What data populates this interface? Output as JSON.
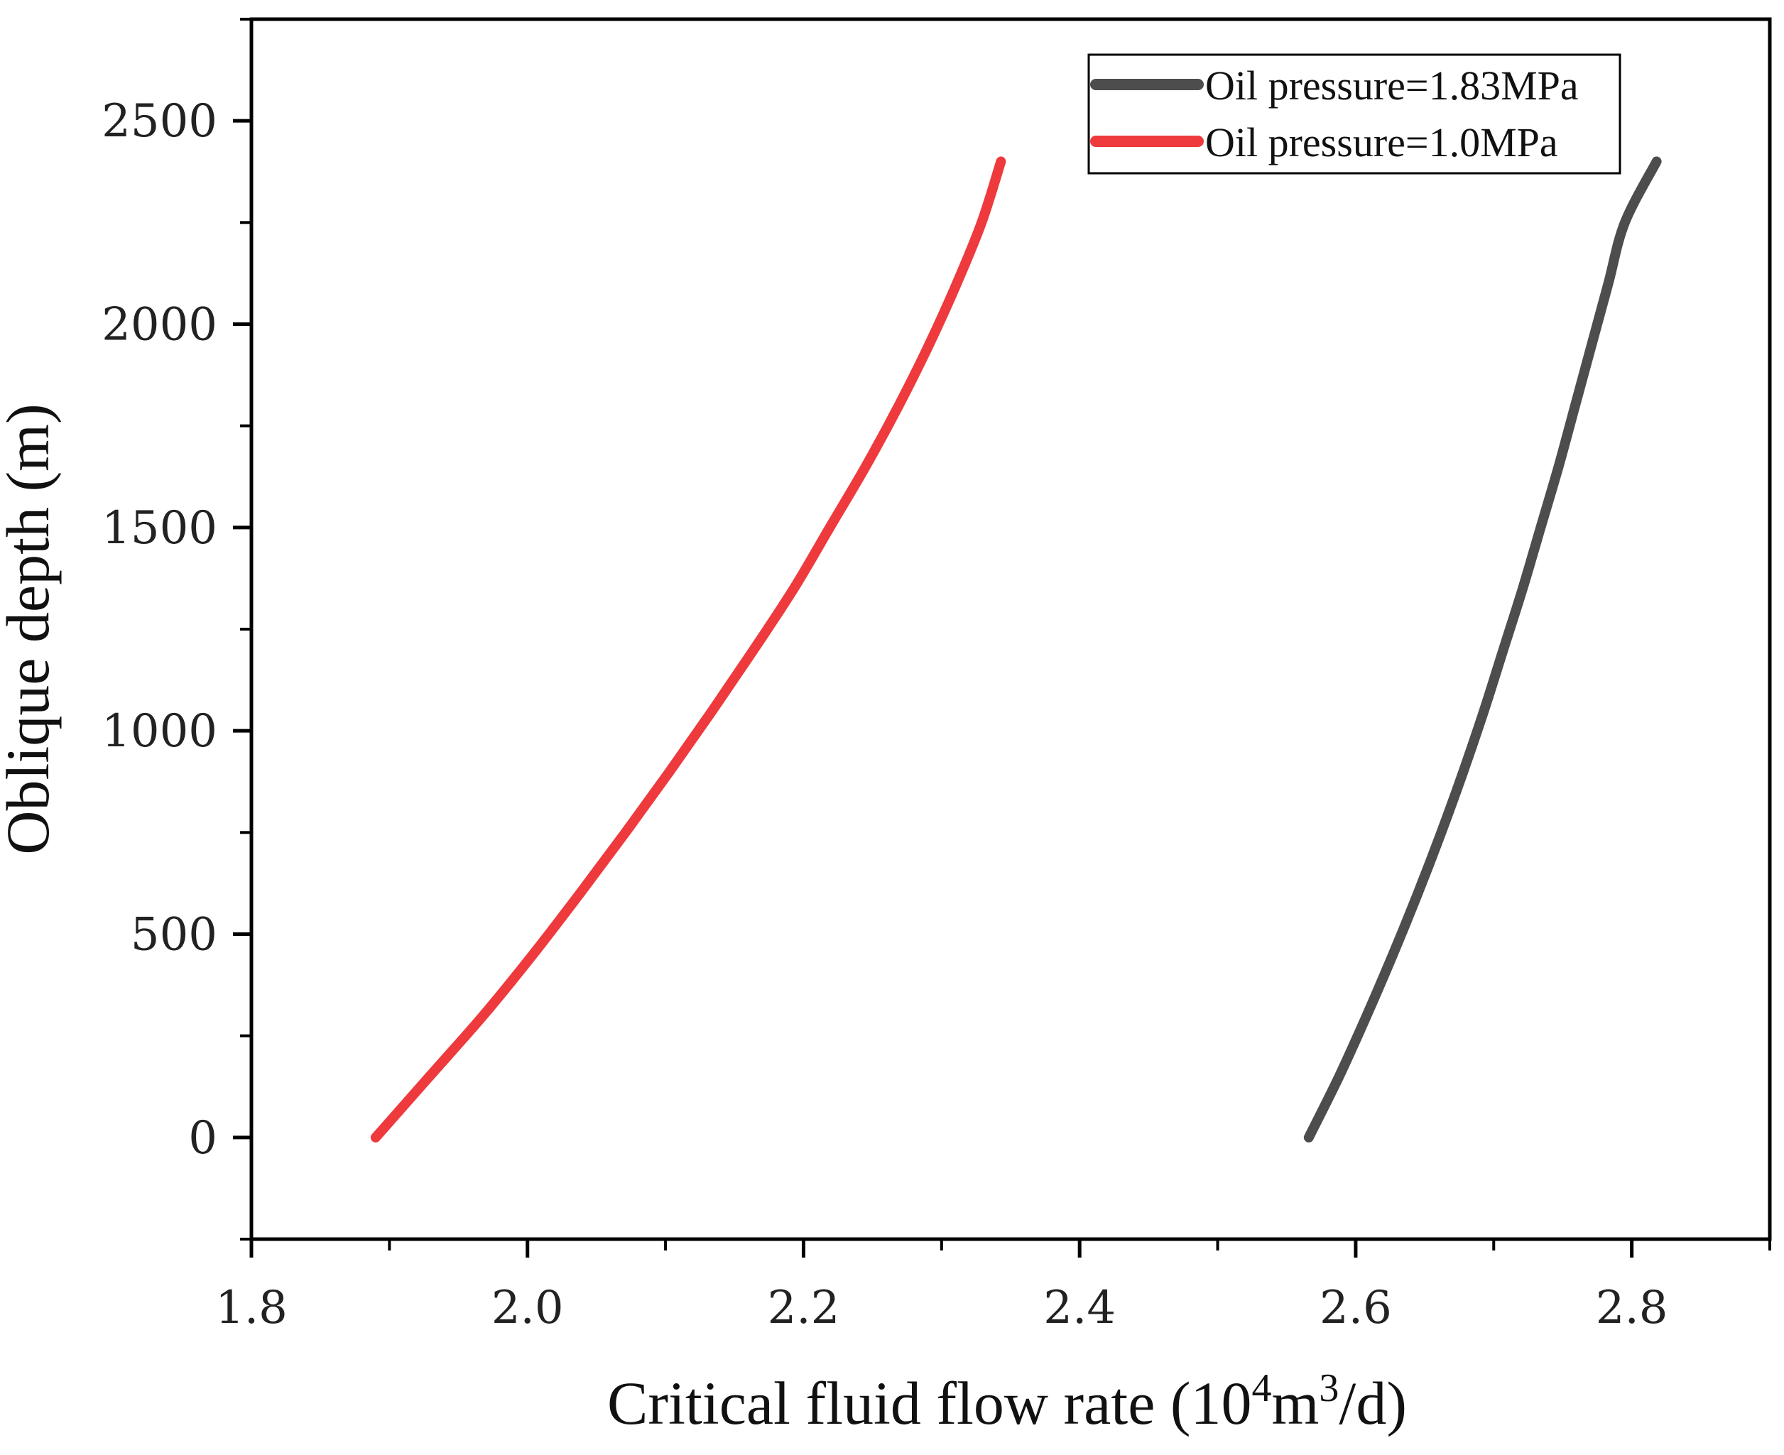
{
  "chart_data": {
    "type": "line",
    "title": "",
    "xlabel": {
      "main": "Critical fluid flow rate (10",
      "sup1": "4",
      "mid": "m",
      "sup2": "3",
      "end": "/d)"
    },
    "ylabel": "Oblique depth (m)",
    "xlim": [
      1.8,
      2.9
    ],
    "ylim": [
      -250,
      2750
    ],
    "x_ticks": [
      {
        "value": 1.8,
        "label": "1.8"
      },
      {
        "value": 2.0,
        "label": "2.0"
      },
      {
        "value": 2.2,
        "label": "2.2"
      },
      {
        "value": 2.4,
        "label": "2.4"
      },
      {
        "value": 2.6,
        "label": "2.6"
      },
      {
        "value": 2.8,
        "label": "2.8"
      }
    ],
    "x_minor_ticks": [
      1.9,
      2.1,
      2.3,
      2.5,
      2.7,
      2.9
    ],
    "y_ticks": [
      {
        "value": 0,
        "label": "0"
      },
      {
        "value": 500,
        "label": "500"
      },
      {
        "value": 1000,
        "label": "1000"
      },
      {
        "value": 1500,
        "label": "1500"
      },
      {
        "value": 2000,
        "label": "2000"
      },
      {
        "value": 2500,
        "label": "2500"
      }
    ],
    "y_minor_ticks": [
      -250,
      250,
      750,
      1250,
      1750,
      2250,
      2750
    ],
    "grid": false,
    "legend": "top-right",
    "series": [
      {
        "name": "Oil pressure=1.83MPa",
        "color": "#4d4d4d",
        "points": [
          [
            2.566,
            0
          ],
          [
            2.588,
            150
          ],
          [
            2.608,
            300
          ],
          [
            2.627,
            450
          ],
          [
            2.645,
            600
          ],
          [
            2.662,
            750
          ],
          [
            2.678,
            900
          ],
          [
            2.693,
            1050
          ],
          [
            2.707,
            1200
          ],
          [
            2.721,
            1350
          ],
          [
            2.734,
            1500
          ],
          [
            2.747,
            1650
          ],
          [
            2.759,
            1800
          ],
          [
            2.771,
            1950
          ],
          [
            2.783,
            2100
          ],
          [
            2.795,
            2250
          ],
          [
            2.818,
            2400
          ]
        ]
      },
      {
        "name": "Oil pressure=1.0MPa",
        "color": "#ee3a3d",
        "points": [
          [
            1.89,
            0
          ],
          [
            1.929,
            150
          ],
          [
            1.968,
            300
          ],
          [
            2.004,
            450
          ],
          [
            2.038,
            600
          ],
          [
            2.071,
            750
          ],
          [
            2.103,
            900
          ],
          [
            2.134,
            1050
          ],
          [
            2.164,
            1200
          ],
          [
            2.193,
            1350
          ],
          [
            2.219,
            1500
          ],
          [
            2.245,
            1650
          ],
          [
            2.269,
            1800
          ],
          [
            2.291,
            1950
          ],
          [
            2.311,
            2100
          ],
          [
            2.329,
            2250
          ],
          [
            2.343,
            2400
          ]
        ]
      }
    ]
  }
}
